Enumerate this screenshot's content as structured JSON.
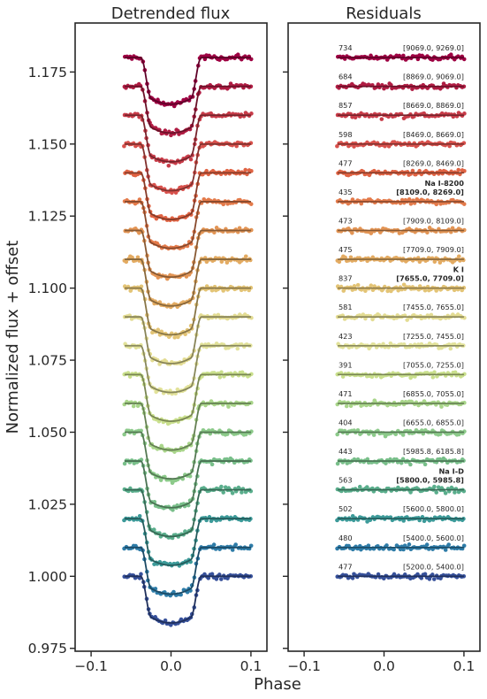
{
  "chart_data": [
    {
      "type": "line",
      "title": "Detrended flux",
      "ylabel": "Normalized flux + offset",
      "xlabel": "",
      "xlim": [
        -0.12,
        0.12
      ],
      "ylim": [
        0.974,
        1.192
      ],
      "xticks": [
        -0.1,
        0.0,
        0.1
      ],
      "xtick_labels": [
        "−0.1",
        "0.0",
        "0.1"
      ],
      "yticks": [
        0.975,
        1.0,
        1.025,
        1.05,
        1.075,
        1.1,
        1.125,
        1.15,
        1.175
      ],
      "ytick_labels": [
        "0.975",
        "1.000",
        "1.025",
        "1.050",
        "1.075",
        "1.100",
        "1.125",
        "1.150",
        "1.175"
      ],
      "grid": false,
      "x_range": [
        -0.058,
        0.1
      ],
      "transit": {
        "ingress_start": -0.038,
        "ingress_end": -0.025,
        "egress_start": 0.025,
        "egress_end": 0.038
      },
      "series": [
        {
          "baseline": 1.18,
          "depth": 0.0145,
          "color": "#9e0142"
        },
        {
          "baseline": 1.17,
          "depth": 0.0145,
          "color": "#b01c43"
        },
        {
          "baseline": 1.16,
          "depth": 0.0145,
          "color": "#c83c49"
        },
        {
          "baseline": 1.15,
          "depth": 0.0145,
          "color": "#d8514c"
        },
        {
          "baseline": 1.14,
          "depth": 0.0145,
          "color": "#e06343"
        },
        {
          "baseline": 1.13,
          "depth": 0.0145,
          "color": "#e37a4a"
        },
        {
          "baseline": 1.12,
          "depth": 0.0145,
          "color": "#e39555"
        },
        {
          "baseline": 1.11,
          "depth": 0.0145,
          "color": "#e3ab62"
        },
        {
          "baseline": 1.1,
          "depth": 0.0145,
          "color": "#e3c476"
        },
        {
          "baseline": 1.09,
          "depth": 0.0145,
          "color": "#e3dc93"
        },
        {
          "baseline": 1.08,
          "depth": 0.0145,
          "color": "#e2e29a"
        },
        {
          "baseline": 1.07,
          "depth": 0.0145,
          "color": "#c9df8c"
        },
        {
          "baseline": 1.06,
          "depth": 0.0145,
          "color": "#a9d58a"
        },
        {
          "baseline": 1.05,
          "depth": 0.0145,
          "color": "#8cca8a"
        },
        {
          "baseline": 1.04,
          "depth": 0.0145,
          "color": "#79bf8a"
        },
        {
          "baseline": 1.03,
          "depth": 0.0145,
          "color": "#5aae8c"
        },
        {
          "baseline": 1.02,
          "depth": 0.0145,
          "color": "#3c9a99"
        },
        {
          "baseline": 1.01,
          "depth": 0.0145,
          "color": "#2e7ca8"
        },
        {
          "baseline": 1.0,
          "depth": 0.0145,
          "color": "#36509a"
        }
      ]
    },
    {
      "type": "scatter",
      "title": "Residuals",
      "xlabel": "Phase",
      "xlim": [
        -0.12,
        0.12
      ],
      "xticks": [
        -0.1,
        0.0,
        0.1
      ],
      "xtick_labels": [
        "−0.1",
        "0.0",
        "0.1"
      ],
      "grid": false,
      "x_range": [
        -0.058,
        0.1
      ],
      "labels": [
        {
          "count": "734",
          "range": "[9069.0, 9269.0]",
          "species": ""
        },
        {
          "count": "684",
          "range": "[8869.0, 9069.0]",
          "species": ""
        },
        {
          "count": "857",
          "range": "[8669.0, 8869.0]",
          "species": ""
        },
        {
          "count": "598",
          "range": "[8469.0, 8669.0]",
          "species": ""
        },
        {
          "count": "477",
          "range": "[8269.0, 8469.0]",
          "species": ""
        },
        {
          "count": "435",
          "range": "[8109.0, 8269.0]",
          "species": "Na I-8200"
        },
        {
          "count": "473",
          "range": "[7909.0, 8109.0]",
          "species": ""
        },
        {
          "count": "475",
          "range": "[7709.0, 7909.0]",
          "species": ""
        },
        {
          "count": "837",
          "range": "[7655.0, 7709.0]",
          "species": "K I"
        },
        {
          "count": "581",
          "range": "[7455.0, 7655.0]",
          "species": ""
        },
        {
          "count": "423",
          "range": "[7255.0, 7455.0]",
          "species": ""
        },
        {
          "count": "391",
          "range": "[7055.0, 7255.0]",
          "species": ""
        },
        {
          "count": "471",
          "range": "[6855.0, 7055.0]",
          "species": ""
        },
        {
          "count": "404",
          "range": "[6655.0, 6855.0]",
          "species": ""
        },
        {
          "count": "443",
          "range": "[5985.8, 6185.8]",
          "species": ""
        },
        {
          "count": "563",
          "range": "[5800.0, 5985.8]",
          "species": "Na I-D"
        },
        {
          "count": "502",
          "range": "[5600.0, 5800.0]",
          "species": ""
        },
        {
          "count": "480",
          "range": "[5400.0, 5600.0]",
          "species": ""
        },
        {
          "count": "477",
          "range": "[5200.0, 5400.0]",
          "species": ""
        }
      ]
    }
  ]
}
